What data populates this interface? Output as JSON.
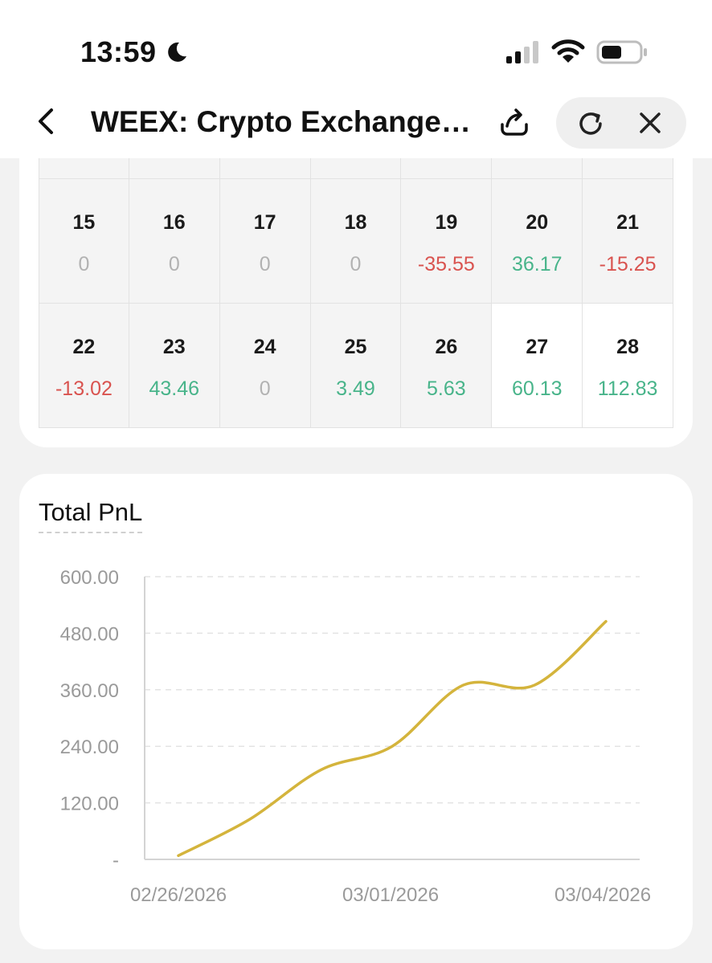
{
  "status_bar": {
    "time": "13:59"
  },
  "nav": {
    "title": "WEEX: Crypto Exchange…"
  },
  "calendar": {
    "weeks": [
      [
        {
          "day": "15",
          "pnl": "0",
          "tone": "zero"
        },
        {
          "day": "16",
          "pnl": "0",
          "tone": "zero"
        },
        {
          "day": "17",
          "pnl": "0",
          "tone": "zero"
        },
        {
          "day": "18",
          "pnl": "0",
          "tone": "zero"
        },
        {
          "day": "19",
          "pnl": "-35.55",
          "tone": "neg"
        },
        {
          "day": "20",
          "pnl": "36.17",
          "tone": "pos"
        },
        {
          "day": "21",
          "pnl": "-15.25",
          "tone": "neg"
        }
      ],
      [
        {
          "day": "22",
          "pnl": "-13.02",
          "tone": "neg"
        },
        {
          "day": "23",
          "pnl": "43.46",
          "tone": "pos"
        },
        {
          "day": "24",
          "pnl": "0",
          "tone": "zero"
        },
        {
          "day": "25",
          "pnl": "3.49",
          "tone": "pos"
        },
        {
          "day": "26",
          "pnl": "5.63",
          "tone": "pos"
        },
        {
          "day": "27",
          "pnl": "60.13",
          "tone": "pos"
        },
        {
          "day": "28",
          "pnl": "112.83",
          "tone": "pos"
        }
      ]
    ]
  },
  "chart_data": {
    "type": "line",
    "title": "Total PnL",
    "x_tick_labels": [
      "02/26/2026",
      "03/01/2026",
      "03/04/2026"
    ],
    "y_tick_labels": [
      "-",
      "120.00",
      "240.00",
      "360.00",
      "480.00",
      "600.00"
    ],
    "ylim": [
      0,
      600
    ],
    "grid": true,
    "series": [
      {
        "color": "#d4b43c",
        "x": [
          "02/26/2026",
          "02/27/2026",
          "02/28/2026",
          "03/01/2026",
          "03/02/2026",
          "03/03/2026",
          "03/04/2026"
        ],
        "y": [
          8,
          85,
          190,
          240,
          370,
          370,
          505
        ]
      }
    ]
  },
  "colors": {
    "positive": "#48b48a",
    "negative": "#d9534f",
    "zero": "#b2b2b2",
    "line": "#d4b43c"
  }
}
